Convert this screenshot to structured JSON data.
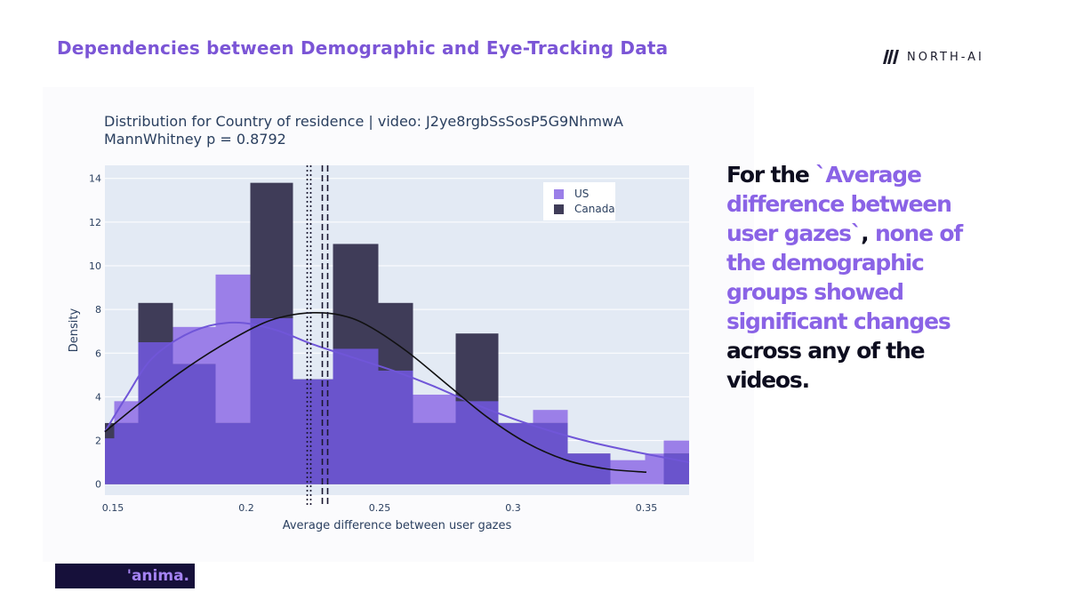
{
  "slide": {
    "title": "Dependencies between Demographic and Eye-Tracking Data",
    "brand": "NORTH-AI",
    "footer_logo": "'anima."
  },
  "side_note": {
    "lead": "For the ",
    "highlight_1": "`Average difference between user gazes`",
    "mid": ", ",
    "highlight_2": "none of the demographic groups showed significant changes",
    "tail": " across any of the videos."
  },
  "colors": {
    "us": "#9b7fe8",
    "canada": "#3f3c58",
    "overlap": "#6a54cc",
    "plot_bg": "#e3eaf4",
    "us_kde": "#7056d8",
    "canada_kde": "#111111",
    "title_accent": "#7b55d6"
  },
  "chart_data": {
    "type": "bar",
    "title": "Distribution for Country of residence | video: J2ye8rgbSsSosP5G9NhmwA",
    "subtitle": "MannWhitney p = 0.8792",
    "xlabel": "Average difference between user gazes",
    "ylabel": "Density",
    "xlim": [
      0.147,
      0.366
    ],
    "ylim": [
      -0.5,
      14.6
    ],
    "xticks": [
      0.15,
      0.2,
      0.25,
      0.3,
      0.35
    ],
    "xtick_labels": [
      "0.15",
      "0.2",
      "0.25",
      "0.3",
      "0.35"
    ],
    "yticks": [
      0,
      2,
      4,
      6,
      8,
      10,
      12,
      14
    ],
    "ytick_labels": [
      "0",
      "2",
      "4",
      "6",
      "8",
      "10",
      "12",
      "14"
    ],
    "legend": {
      "position": "top-right",
      "entries": [
        "US",
        "Canada"
      ]
    },
    "series": [
      {
        "name": "US",
        "bins": [
          [
            0.147,
            0.1505,
            2.1
          ],
          [
            0.1505,
            0.1595,
            3.8
          ],
          [
            0.1595,
            0.1725,
            6.5
          ],
          [
            0.1725,
            0.1885,
            7.2
          ],
          [
            0.1885,
            0.2015,
            9.6
          ],
          [
            0.2015,
            0.2175,
            7.6
          ],
          [
            0.2175,
            0.2325,
            4.8
          ],
          [
            0.2325,
            0.2495,
            6.2
          ],
          [
            0.2495,
            0.2625,
            5.2
          ],
          [
            0.2625,
            0.2785,
            4.1
          ],
          [
            0.2785,
            0.2945,
            3.8
          ],
          [
            0.2945,
            0.3075,
            2.8
          ],
          [
            0.3075,
            0.3205,
            3.4
          ],
          [
            0.3205,
            0.3365,
            1.4
          ],
          [
            0.3365,
            0.3495,
            1.1
          ],
          [
            0.3495,
            0.3565,
            1.4
          ],
          [
            0.3565,
            0.366,
            2.0
          ]
        ]
      },
      {
        "name": "Canada",
        "bins": [
          [
            0.147,
            0.1595,
            2.8
          ],
          [
            0.1595,
            0.1725,
            8.3
          ],
          [
            0.1725,
            0.1885,
            5.5
          ],
          [
            0.1885,
            0.2015,
            2.8
          ],
          [
            0.2015,
            0.2175,
            13.8
          ],
          [
            0.2175,
            0.2325,
            4.8
          ],
          [
            0.2325,
            0.2495,
            11.0
          ],
          [
            0.2495,
            0.2625,
            8.3
          ],
          [
            0.2625,
            0.2785,
            2.8
          ],
          [
            0.2785,
            0.2945,
            6.9
          ],
          [
            0.2945,
            0.3075,
            2.8
          ],
          [
            0.3075,
            0.3205,
            2.8
          ],
          [
            0.3205,
            0.3365,
            1.4
          ],
          [
            0.3365,
            0.3495,
            0.0
          ],
          [
            0.3495,
            0.3565,
            0.0
          ],
          [
            0.3565,
            0.366,
            1.4
          ]
        ]
      }
    ],
    "kde": [
      {
        "name": "US",
        "x": [
          0.147,
          0.155,
          0.165,
          0.18,
          0.195,
          0.21,
          0.225,
          0.24,
          0.255,
          0.27,
          0.285,
          0.3,
          0.315,
          0.33,
          0.345,
          0.366
        ],
        "y": [
          2.4,
          4.0,
          5.8,
          7.0,
          7.4,
          7.1,
          6.4,
          5.8,
          5.2,
          4.5,
          3.7,
          3.0,
          2.4,
          1.9,
          1.5,
          1.0
        ]
      },
      {
        "name": "Canada",
        "x": [
          0.147,
          0.16,
          0.175,
          0.19,
          0.205,
          0.215,
          0.225,
          0.235,
          0.245,
          0.26,
          0.275,
          0.29,
          0.305,
          0.32,
          0.335,
          0.35
        ],
        "y": [
          2.4,
          3.7,
          5.1,
          6.3,
          7.3,
          7.7,
          7.85,
          7.75,
          7.3,
          6.1,
          4.6,
          3.1,
          1.9,
          1.1,
          0.7,
          0.55
        ]
      }
    ],
    "medians": [
      {
        "name": "US",
        "x": 0.2235,
        "style": "dotted"
      },
      {
        "name": "Canada",
        "x": 0.2295,
        "style": "dashed"
      }
    ]
  }
}
